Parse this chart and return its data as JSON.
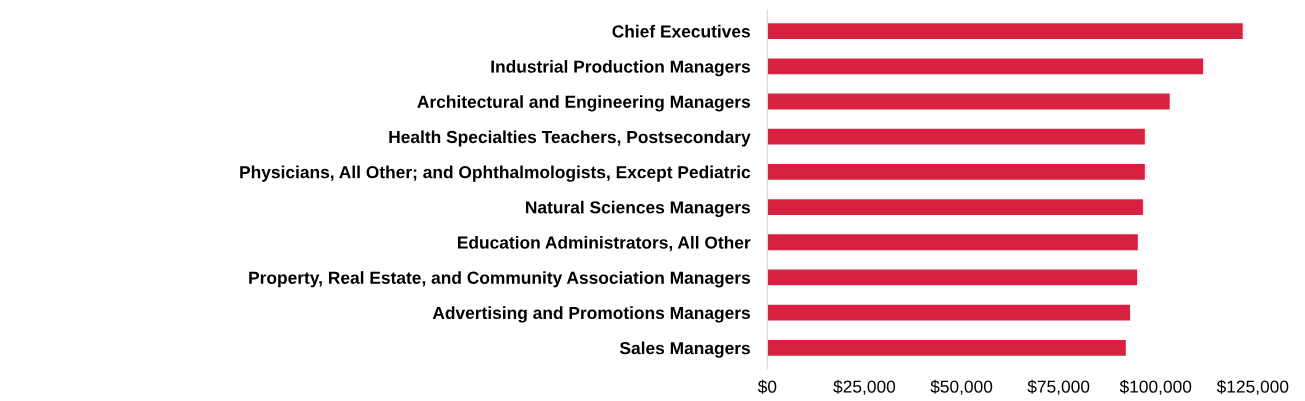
{
  "chart_data": {
    "type": "bar",
    "orientation": "horizontal",
    "categories": [
      "Chief Executives",
      "Industrial Production Managers",
      "Architectural and Engineering Managers",
      "Health Specialties Teachers, Postsecondary",
      "Physicians, All Other; and Ophthalmologists, Except Pediatric",
      "Natural Sciences Managers",
      "Education Administrators, All Other",
      "Property, Real Estate, and Community Association Managers",
      "Advertising and Promotions Managers",
      "Sales Managers"
    ],
    "values": [
      122400,
      112200,
      103600,
      97200,
      97200,
      96700,
      95400,
      95200,
      93400,
      92300
    ],
    "color": "#d62240",
    "xlim": [
      0,
      125000
    ],
    "xticks": [
      {
        "value": 0,
        "label": "$0"
      },
      {
        "value": 25000,
        "label": "$25,000"
      },
      {
        "value": 50000,
        "label": "$50,000"
      },
      {
        "value": 75000,
        "label": "$75,000"
      },
      {
        "value": 100000,
        "label": "$100,000"
      },
      {
        "value": 125000,
        "label": "$125,000"
      }
    ],
    "grid": false,
    "legend": false
  }
}
